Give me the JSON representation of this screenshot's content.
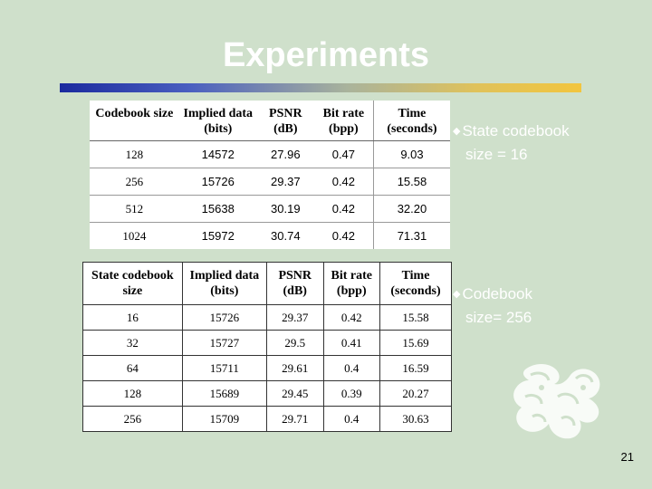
{
  "slide": {
    "title": "Experiments",
    "page_number": "21"
  },
  "table1": {
    "headers": [
      "Codebook size",
      "Implied data (bits)",
      "PSNR (dB)",
      "Bit rate (bpp)",
      "Time (seconds)"
    ],
    "rows": [
      [
        "128",
        "14572",
        "27.96",
        "0.47",
        "9.03"
      ],
      [
        "256",
        "15726",
        "29.37",
        "0.42",
        "15.58"
      ],
      [
        "512",
        "15638",
        "30.19",
        "0.42",
        "32.20"
      ],
      [
        "1024",
        "15972",
        "30.74",
        "0.42",
        "71.31"
      ]
    ]
  },
  "table2": {
    "headers": [
      "State codebook size",
      "Implied data (bits)",
      "PSNR (dB)",
      "Bit rate (bpp)",
      "Time (seconds)"
    ],
    "rows": [
      [
        "16",
        "15726",
        "29.37",
        "0.42",
        "15.58"
      ],
      [
        "32",
        "15727",
        "29.5",
        "0.41",
        "15.69"
      ],
      [
        "64",
        "15711",
        "29.61",
        "0.4",
        "16.59"
      ],
      [
        "128",
        "15689",
        "29.45",
        "0.39",
        "20.27"
      ],
      [
        "256",
        "15709",
        "29.71",
        "0.4",
        "30.63"
      ]
    ]
  },
  "bullets": [
    {
      "line1": "State codebook",
      "line2": "size = 16"
    },
    {
      "line1": "Codebook",
      "line2": "size= 256"
    }
  ],
  "colors": {
    "background": "#cfe0cb",
    "title": "#ffffff",
    "bar_start": "#1b2a9e",
    "bar_end": "#f2c53e"
  },
  "icons": {
    "bullet": "diamond-bullet-icon",
    "emblem": "dragon-emblem-icon"
  }
}
